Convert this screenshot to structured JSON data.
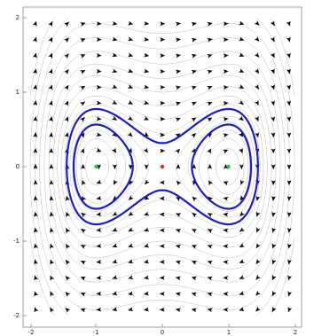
{
  "chart_data": {
    "type": "phase-portrait",
    "title": "",
    "xlabel": "",
    "ylabel": "",
    "xlim": [
      -2,
      2
    ],
    "ylim": [
      -2,
      2
    ],
    "x_ticks": [
      "-2",
      "-1",
      "0",
      "1",
      "2"
    ],
    "y_ticks": [
      "-2",
      "-1",
      "0",
      "1",
      "2"
    ],
    "grid": false,
    "equilibria": [
      {
        "x": -1,
        "y": 0,
        "kind": "center",
        "color": "#22cc22"
      },
      {
        "x": 0,
        "y": 0,
        "kind": "saddle",
        "color": "#dd2222"
      },
      {
        "x": 1,
        "y": 0,
        "kind": "center",
        "color": "#22cc22"
      }
    ],
    "highlighted_orbits": [
      {
        "name": "",
        "level": 0.05,
        "color": "#1a1ad0",
        "shape": "figure-eight around both centers"
      },
      {
        "name": "",
        "level": -0.09,
        "color": "#1a1ad0",
        "shape": "loop around right center"
      }
    ],
    "flow_direction": "clockwise",
    "flow_color": "#000000",
    "streamline_color": "#b8b8b8"
  }
}
